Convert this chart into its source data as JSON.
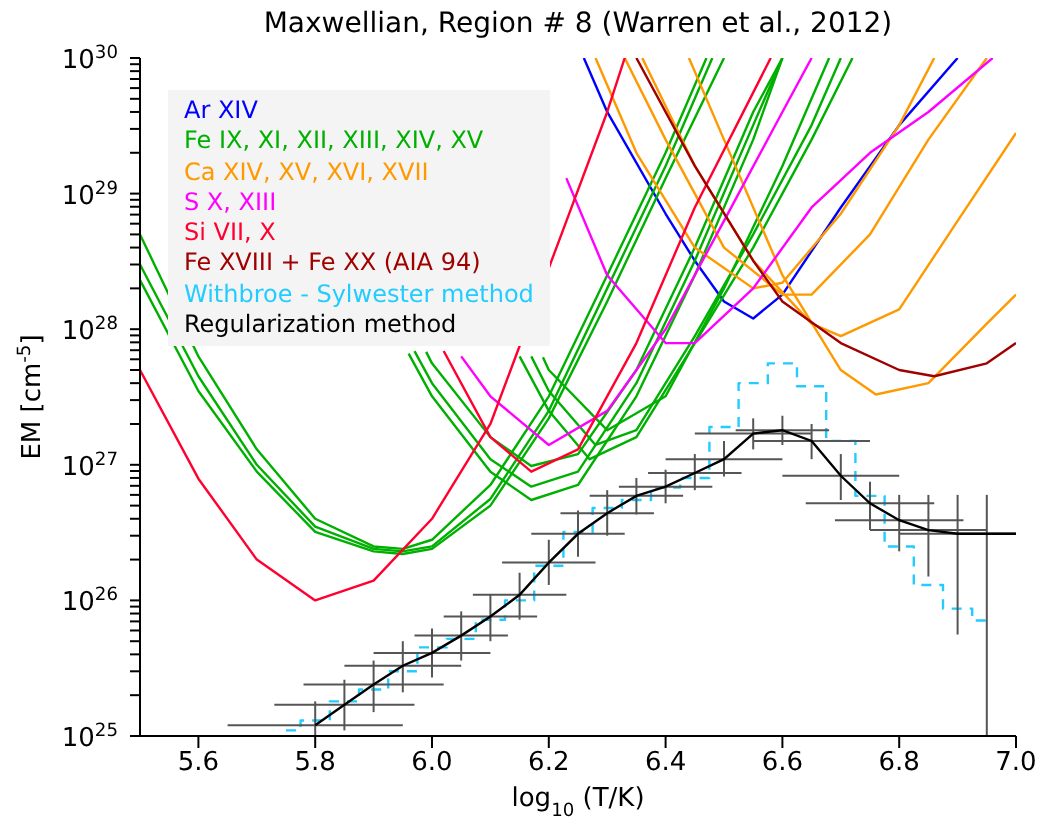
{
  "chart_data": {
    "type": "line",
    "title": "Maxwellian, Region # 8 (Warren et al., 2012)",
    "xlabel": "log$_{10}$ (T/K)",
    "ylabel": "EM [cm$^{-5}$]",
    "log": "y",
    "legend": "top left",
    "xlim": [
      5.5,
      7.0
    ],
    "xticks": [
      5.6,
      5.8,
      {
        "value": 6,
        "label": "6.0"
      },
      6.2,
      6.4,
      6.6,
      6.8,
      {
        "value": 7,
        "label": "7.0"
      }
    ],
    "ylim": [
      1e+25,
      1e+30
    ],
    "yticks": [
      {
        "value": 1e+25,
        "label": "10$^{25}$"
      },
      {
        "value": 2e+25,
        "label": null
      },
      {
        "value": 3e+25,
        "label": null
      },
      {
        "value": 4e+25,
        "label": null
      },
      {
        "value": 5e+25,
        "label": null
      },
      {
        "value": 6e+25,
        "label": null
      },
      {
        "value": 7e+25,
        "label": null
      },
      {
        "value": 8e+25,
        "label": null
      },
      {
        "value": 9e+25,
        "label": null
      },
      {
        "value": 1e+26,
        "label": "10$^{26}$"
      },
      {
        "value": 2e+26,
        "label": null
      },
      {
        "value": 3e+26,
        "label": null
      },
      {
        "value": 4e+26,
        "label": null
      },
      {
        "value": 5e+26,
        "label": null
      },
      {
        "value": 6e+26,
        "label": null
      },
      {
        "value": 7e+26,
        "label": null
      },
      {
        "value": 8e+26,
        "label": null
      },
      {
        "value": 9e+26,
        "label": null
      },
      {
        "value": 1e+27,
        "label": "10$^{27}$"
      },
      {
        "value": 2e+27,
        "label": null
      },
      {
        "value": 3e+27,
        "label": null
      },
      {
        "value": 4e+27,
        "label": null
      },
      {
        "value": 5e+27,
        "label": null
      },
      {
        "value": 6e+27,
        "label": null
      },
      {
        "value": 7e+27,
        "label": null
      },
      {
        "value": 8e+27,
        "label": null
      },
      {
        "value": 9e+27,
        "label": null
      },
      {
        "value": 1e+28,
        "label": "10$^{28}$"
      },
      {
        "value": 2e+28,
        "label": null
      },
      {
        "value": 3e+28,
        "label": null
      },
      {
        "value": 4e+28,
        "label": null
      },
      {
        "value": 5e+28,
        "label": null
      },
      {
        "value": 6e+28,
        "label": null
      },
      {
        "value": 7e+28,
        "label": null
      },
      {
        "value": 8e+28,
        "label": null
      },
      {
        "value": 9e+28,
        "label": null
      },
      {
        "value": 1e+29,
        "label": "10$^{29}$"
      },
      {
        "value": 2e+29,
        "label": null
      },
      {
        "value": 3e+29,
        "label": null
      },
      {
        "value": 4e+29,
        "label": null
      },
      {
        "value": 5e+29,
        "label": null
      },
      {
        "value": 6e+29,
        "label": null
      },
      {
        "value": 7e+29,
        "label": null
      },
      {
        "value": 8e+29,
        "label": null
      },
      {
        "value": 9e+29,
        "label": null
      },
      {
        "value": 1e+30,
        "label": "10$^{30}$"
      }
    ],
    "series": [
      {
        "name": "Ar XIV",
        "color": "#0000ff",
        "x": [
          6.26,
          6.3,
          6.4,
          6.45,
          6.5,
          6.55,
          6.6,
          6.7,
          6.8,
          6.9
        ],
        "values": [
          1e+30,
          4e+29,
          7.1e+28,
          3.2e+28,
          1.6e+28,
          1.2e+28,
          1.8e+28,
          7.9e+28,
          3.2e+29,
          1e+30
        ]
      },
      {
        "name": "Fe IX, XI, XII, XIII, XIV, XV",
        "color": "#00b000",
        "x": [
          5.5,
          5.6,
          5.7,
          5.8,
          5.9,
          5.95,
          6.0,
          6.1,
          6.2,
          6.3,
          6.4,
          6.47
        ],
        "values": [
          5e+28,
          6.3e+27,
          1.3e+27,
          4e+26,
          2.5e+26,
          2.4e+26,
          2.8e+26,
          7.1e+26,
          3.2e+27,
          2.5e+28,
          2e+29,
          1e+30
        ]
      },
      {
        "color": "#00b000",
        "x": [
          5.5,
          5.6,
          5.7,
          5.8,
          5.9,
          5.95,
          6.0,
          6.1,
          6.2,
          6.3,
          6.4,
          6.48
        ],
        "values": [
          3e+28,
          4.5e+27,
          1e+27,
          3.5e+26,
          2.4e+26,
          2.3e+26,
          2.5e+26,
          5.6e+26,
          2.5e+27,
          2e+28,
          1.6e+29,
          1e+30
        ]
      },
      {
        "color": "#00b000",
        "x": [
          5.5,
          5.6,
          5.7,
          5.8,
          5.9,
          5.95,
          6.0,
          6.1,
          6.2,
          6.3,
          6.4,
          6.5
        ],
        "values": [
          2.3e+28,
          3.5e+27,
          8.9e+26,
          3.2e+26,
          2.3e+26,
          2.2e+26,
          2.4e+26,
          5e+26,
          2.2e+27,
          1.6e+28,
          1.3e+29,
          1e+30
        ]
      },
      {
        "color": "#00b000",
        "x": [
          5.96,
          6.0,
          6.1,
          6.17,
          6.25,
          6.35,
          6.45,
          6.55,
          6.6
        ],
        "values": [
          6.6e+27,
          3.2e+27,
          8.9e+26,
          5.5e+26,
          7.1e+26,
          3.2e+27,
          2.5e+28,
          2.5e+29,
          1e+30
        ]
      },
      {
        "color": "#00b000",
        "x": [
          5.97,
          6.0,
          6.1,
          6.17,
          6.25,
          6.35,
          6.45,
          6.55,
          6.6
        ],
        "values": [
          6.9e+27,
          4e+27,
          1.1e+27,
          6.9e+26,
          8.9e+26,
          4e+27,
          3.2e+28,
          3.2e+29,
          1e+30
        ]
      },
      {
        "color": "#00b000",
        "x": [
          5.99,
          6.0,
          6.1,
          6.17,
          6.25,
          6.35,
          6.45,
          6.55,
          6.6
        ],
        "values": [
          6.8e+27,
          5.6e+27,
          1.6e+27,
          9.8e+26,
          1.2e+27,
          5e+27,
          4e+28,
          4e+29,
          1e+30
        ]
      },
      {
        "color": "#00b000",
        "x": [
          6.15,
          6.2,
          6.27,
          6.35,
          6.45,
          6.55,
          6.65,
          6.72
        ],
        "values": [
          6.3e+27,
          2.5e+27,
          1.1e+27,
          1.6e+27,
          7.9e+27,
          4e+28,
          2.5e+29,
          1e+30
        ]
      },
      {
        "color": "#00b000",
        "x": [
          6.17,
          6.2,
          6.28,
          6.35,
          6.45,
          6.55,
          6.65,
          6.7
        ],
        "values": [
          6.3e+27,
          3.5e+27,
          1.4e+27,
          1.8e+27,
          8.9e+27,
          5e+28,
          3.2e+29,
          1e+30
        ]
      },
      {
        "color": "#00b000",
        "x": [
          6.19,
          6.2,
          6.3,
          6.4,
          6.5,
          6.6,
          6.68
        ],
        "values": [
          6.2e+27,
          5e+27,
          1.8e+27,
          3.2e+27,
          2e+28,
          1.6e+29,
          1e+30
        ]
      },
      {
        "name": "Ca XIV, XV, XVI, XVII",
        "color": "#ff9900",
        "x": [
          6.28,
          6.35,
          6.45,
          6.55,
          6.6,
          6.7,
          6.8,
          6.86
        ],
        "values": [
          1e+30,
          2e+29,
          4e+28,
          2e+28,
          2.2e+28,
          7.1e+28,
          3.2e+29,
          1e+30
        ]
      },
      {
        "color": "#ff9900",
        "x": [
          6.33,
          6.4,
          6.5,
          6.6,
          6.65,
          6.75,
          6.85,
          6.95
        ],
        "values": [
          1e+30,
          2.5e+29,
          4e+28,
          1.8e+28,
          1.8e+28,
          5e+28,
          2.5e+29,
          1e+30
        ]
      },
      {
        "color": "#ff9900",
        "x": [
          6.36,
          6.45,
          6.55,
          6.65,
          6.7,
          6.8,
          6.9,
          7.0
        ],
        "values": [
          1e+30,
          1.6e+29,
          3.2e+28,
          1.1e+28,
          8.9e+27,
          1.4e+28,
          6.3e+28,
          2.8e+29
        ]
      },
      {
        "color": "#ff9900",
        "x": [
          6.44,
          6.5,
          6.6,
          6.7,
          6.76,
          6.85,
          6.95,
          7.0
        ],
        "values": [
          1e+30,
          2.5e+29,
          2.5e+28,
          5e+27,
          3.3e+27,
          4e+27,
          1.1e+28,
          1.8e+28
        ]
      },
      {
        "name": "S X, XIII",
        "color": "#ff00ff",
        "x": [
          6.05,
          6.1,
          6.2,
          6.3,
          6.4,
          6.5,
          6.6,
          6.65
        ],
        "values": [
          6.3e+27,
          3.2e+27,
          1.4e+27,
          2.5e+27,
          1e+28,
          6.3e+28,
          4e+29,
          1e+30
        ]
      },
      {
        "color": "#ff00ff",
        "x": [
          6.23,
          6.3,
          6.4,
          6.45,
          6.55,
          6.65,
          6.75,
          6.85,
          6.96
        ],
        "values": [
          1.3e+29,
          2.5e+28,
          7.9e+27,
          7.9e+27,
          2e+28,
          7.9e+28,
          2e+29,
          4e+29,
          1e+30
        ]
      },
      {
        "name": "Si VII, X",
        "color": "#ff0030",
        "x": [
          5.5,
          5.6,
          5.7,
          5.8,
          5.9,
          6.0,
          6.1,
          6.22,
          6.3,
          6.33
        ],
        "values": [
          5e+27,
          7.9e+26,
          2e+26,
          1e+26,
          1.4e+26,
          4e+26,
          2e+27,
          4.8e+28,
          4e+29,
          1e+30
        ]
      },
      {
        "color": "#ff0030",
        "x": [
          6.02,
          6.1,
          6.17,
          6.25,
          6.35,
          6.45,
          6.58
        ],
        "values": [
          6.9e+27,
          1.6e+27,
          8.9e+26,
          1.3e+27,
          7.9e+27,
          7.9e+28,
          1e+30
        ]
      },
      {
        "name": "Fe XVIII + Fe XX (AIA 94)",
        "color": "#a00000",
        "x": [
          6.35,
          6.45,
          6.55,
          6.6,
          6.7,
          6.8,
          6.86,
          6.95,
          7.0
        ],
        "values": [
          1e+30,
          1.6e+29,
          3.2e+28,
          1.6e+28,
          7.9e+27,
          5e+27,
          4.5e+27,
          5.6e+27,
          7.9e+27
        ]
      },
      {
        "name": "Withbroe - Sylwester method",
        "type": "step",
        "line_style": "dashed",
        "color": "#22ccff",
        "x": [
          5.75,
          5.8,
          5.85,
          5.9,
          5.95,
          6.0,
          6.05,
          6.1,
          6.15,
          6.2,
          6.25,
          6.3,
          6.35,
          6.4,
          6.45,
          6.5,
          6.55,
          6.6,
          6.65,
          6.7,
          6.75,
          6.8,
          6.85,
          6.9,
          6.95
        ],
        "values": [
          1.1e+25,
          1.3e+25,
          1.8e+25,
          2.2e+25,
          3e+25,
          4.5e+25,
          5.2e+25,
          7.2e+25,
          1e+26,
          1.8e+26,
          3.2e+26,
          4.8e+26,
          5.5e+26,
          6.8e+26,
          8e+26,
          1.9e+27,
          4e+27,
          5.6e+27,
          3.8e+27,
          1.5e+27,
          5.9e+26,
          2.5e+26,
          1.3e+26,
          8.7e+25,
          7.1e+25
        ]
      },
      {
        "name": "Regularization method",
        "color": "#000000",
        "x": [
          5.8,
          5.85,
          5.9,
          5.95,
          6.0,
          6.05,
          6.1,
          6.15,
          6.2,
          6.25,
          6.3,
          6.35,
          6.4,
          6.45,
          6.5,
          6.55,
          6.6,
          6.65,
          6.7,
          6.75,
          6.8,
          6.85,
          6.9,
          6.95,
          7.0
        ],
        "values": [
          1.2e+25,
          1.7e+25,
          2.4e+25,
          3.3e+25,
          4.1e+25,
          5.5e+25,
          7.6e+25,
          1.1e+26,
          1.9e+26,
          3.1e+26,
          4.4e+26,
          5.9e+26,
          6.9e+26,
          8.7e+26,
          1.1e+27,
          1.7e+27,
          1.8e+27,
          1.5e+27,
          8.3e+26,
          5.2e+26,
          3.9e+26,
          3.3e+26,
          3.1e+26,
          3.1e+26,
          3.1e+26
        ],
        "errors": [
          [
            1e+25,
            1.8e+25
          ],
          [
            1.1e+25,
            2.6e+25
          ],
          [
            1.5e+25,
            3.6e+25
          ],
          [
            2.1e+25,
            5e+25
          ],
          [
            2.7e+25,
            6.2e+25
          ],
          [
            3.6e+25,
            8.3e+25
          ],
          [
            5e+25,
            1.1e+26
          ],
          [
            7.2e+25,
            1.6e+26
          ],
          [
            1.3e+26,
            2.8e+26
          ],
          [
            2.1e+26,
            4.6e+26
          ],
          [
            3e+26,
            6.5e+26
          ],
          [
            4.3e+26,
            8e+26
          ],
          [
            5.2e+26,
            9.2e+26
          ],
          [
            6.5e+26,
            1.2e+27
          ],
          [
            8.2e+26,
            1.5e+27
          ],
          [
            1.3e+27,
            2.2e+27
          ],
          [
            1.4e+27,
            2.3e+27
          ],
          [
            1.1e+27,
            2e+27
          ],
          [
            5.5e+26,
            1.2e+27
          ],
          [
            3.3e+26,
            7.5e+26
          ],
          [
            2.3e+26,
            6e+26
          ],
          [
            1.5e+26,
            6e+26
          ],
          [
            5.6e+25,
            6e+26
          ],
          [
            1e+25,
            6e+26
          ],
          null
        ],
        "xerrors": [
          0.15,
          0.12,
          0.12,
          0.1,
          0.1,
          0.08,
          0.08,
          0.08,
          0.08,
          0.08,
          0.08,
          0.08,
          0.08,
          0.08,
          0.1,
          0.1,
          0.08,
          0.1,
          0.1,
          0.11,
          0.11,
          0.1,
          0.1,
          0.05,
          null
        ]
      }
    ]
  }
}
